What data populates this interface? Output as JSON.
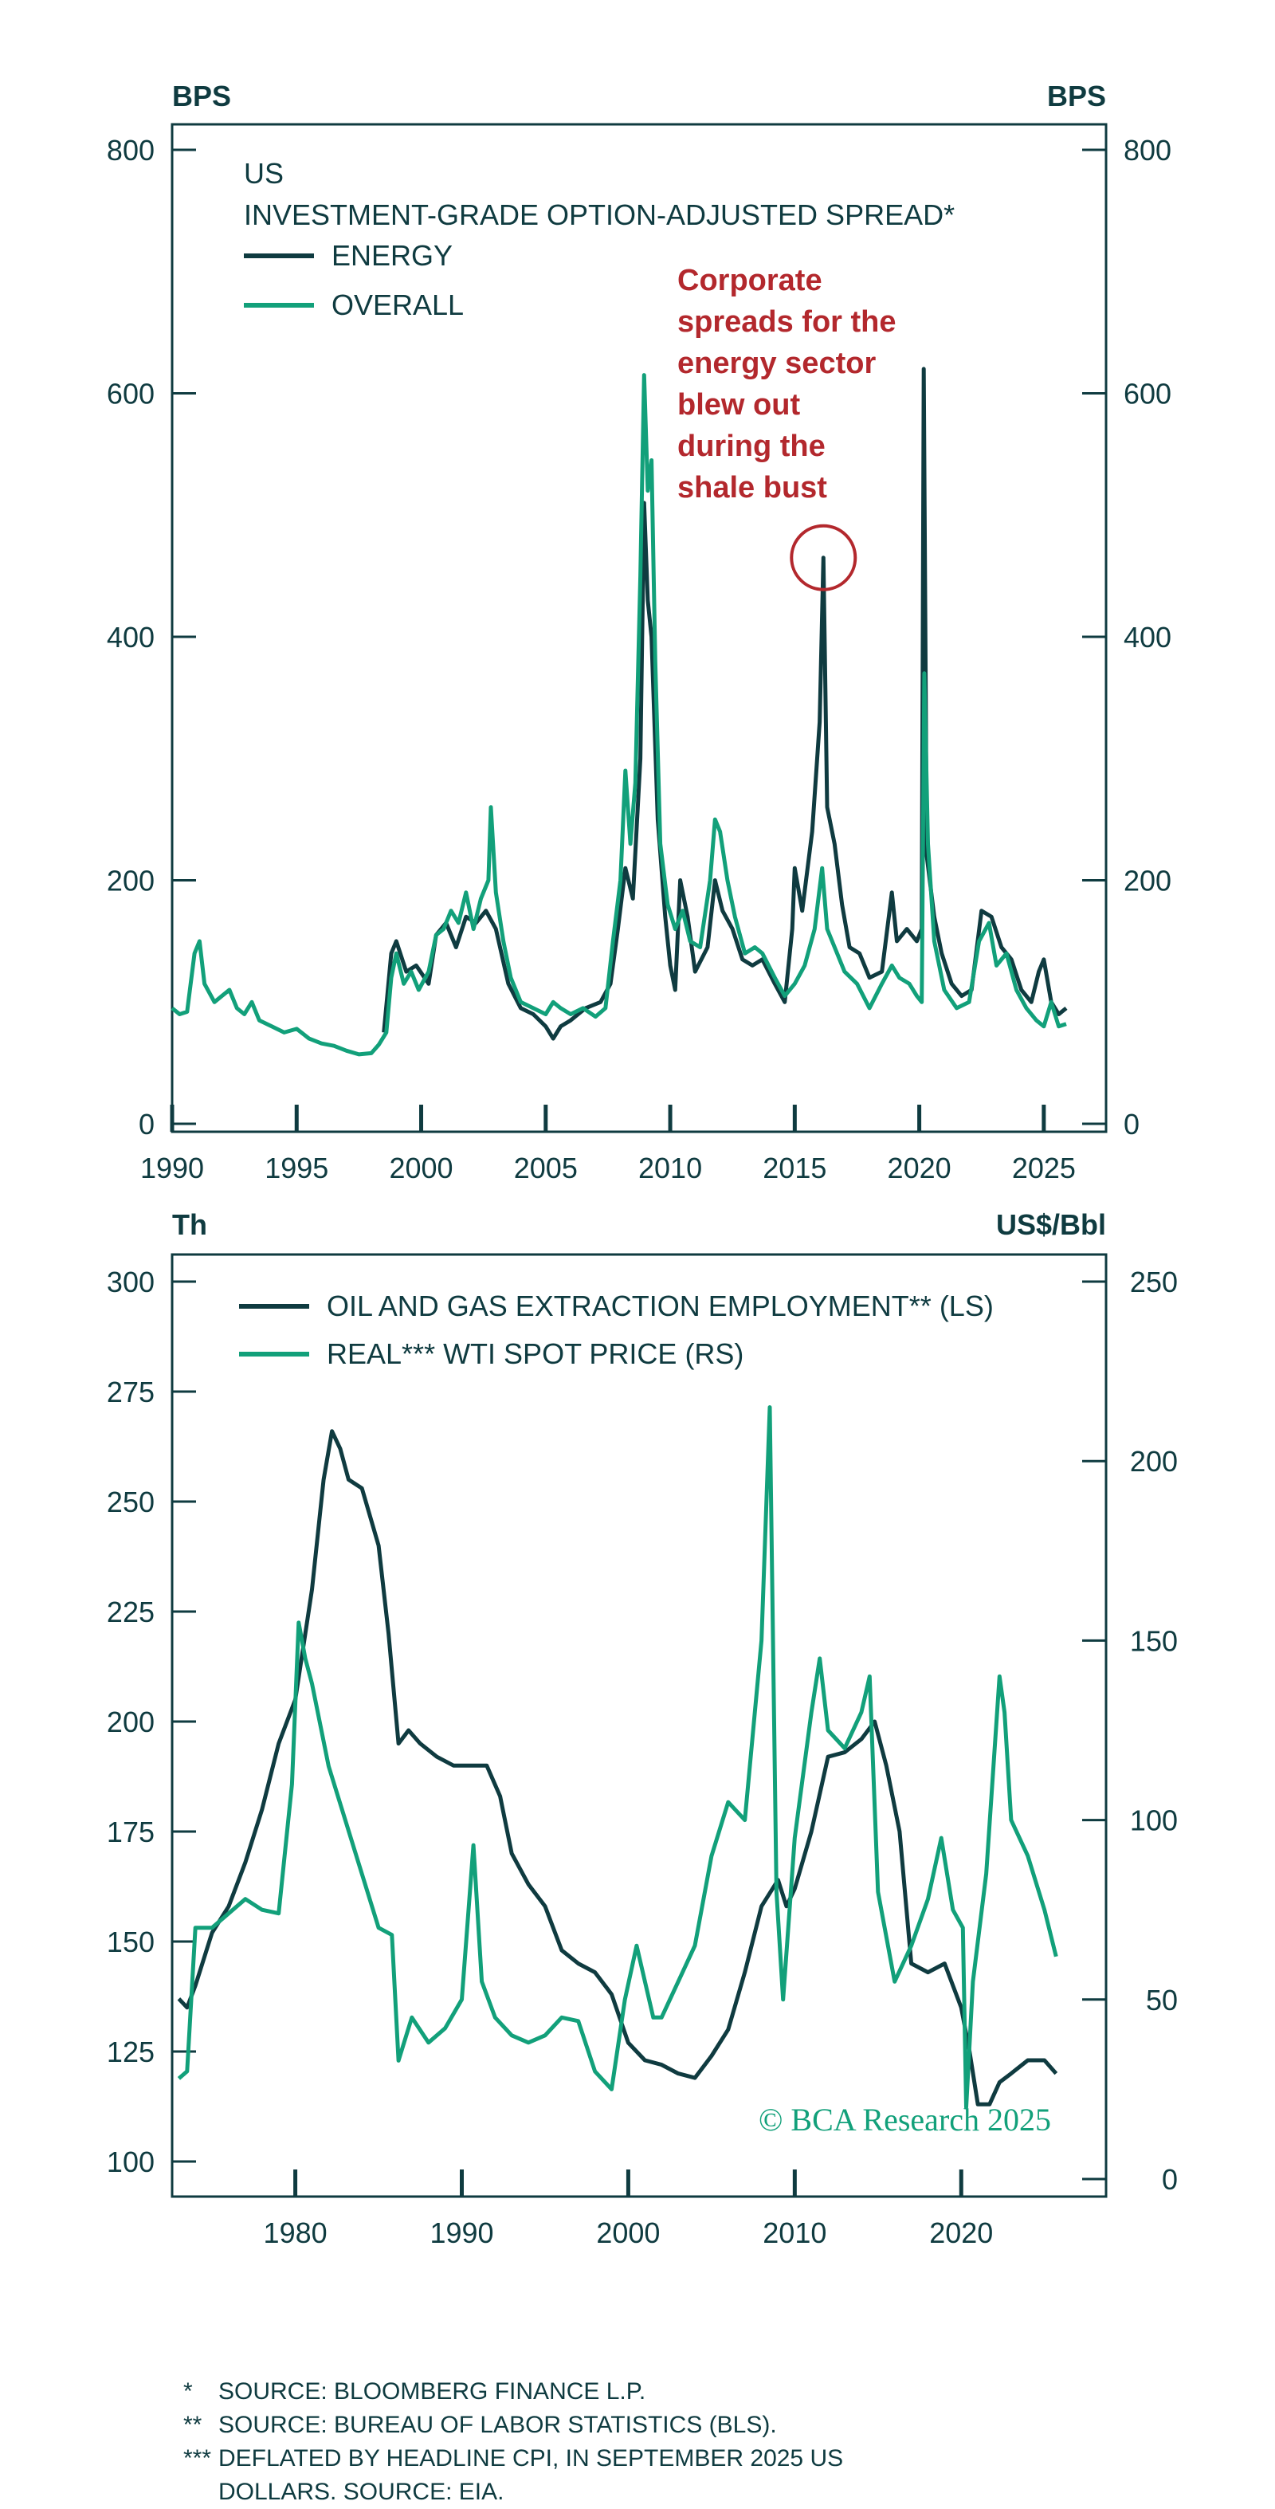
{
  "colors": {
    "energy": "#0f3b40",
    "overall": "#12a07a",
    "annotation": "#b3282d",
    "axis": "#0f3b40"
  },
  "top": {
    "left_unit": "BPS",
    "right_unit": "BPS",
    "title_line1": "US",
    "title_line2": "INVESTMENT-GRADE OPTION-ADJUSTED SPREAD*",
    "legend": [
      "ENERGY",
      "OVERALL"
    ],
    "annotation": [
      "Corporate",
      "spreads for the",
      "energy sector",
      "blew out",
      "during the",
      "shale bust"
    ]
  },
  "bottom": {
    "left_unit": "Th",
    "right_unit": "US$/Bbl",
    "legend": [
      "OIL AND GAS EXTRACTION EMPLOYMENT** (LS)",
      "REAL*** WTI SPOT PRICE (RS)"
    ],
    "watermark": "© BCA Research 2025"
  },
  "footnotes": [
    {
      "mark": "*",
      "text": "SOURCE: BLOOMBERG FINANCE L.P."
    },
    {
      "mark": "**",
      "text": "SOURCE: BUREAU OF LABOR STATISTICS (BLS)."
    },
    {
      "mark": "***",
      "text": "DEFLATED BY HEADLINE CPI, IN SEPTEMBER 2025 US"
    },
    {
      "mark": "",
      "text": "DOLLARS. SOURCE: EIA."
    }
  ],
  "chart_data": [
    {
      "type": "line",
      "title": "US INVESTMENT-GRADE OPTION-ADJUSTED SPREAD*",
      "ylabel": "BPS",
      "ylabel_right": "BPS",
      "ylim": [
        0,
        800
      ],
      "yticks": [
        0,
        200,
        400,
        600,
        800
      ],
      "xlim": [
        1990,
        2027.5
      ],
      "xticks": [
        1990,
        1995,
        2000,
        2005,
        2010,
        2015,
        2020,
        2025
      ],
      "annotation": {
        "text": "Corporate spreads for the energy sector blew out during the shale bust",
        "x": 2016.15,
        "y": 465
      },
      "series": [
        {
          "name": "ENERGY",
          "color": "#0f3b40",
          "x": [
            1998.5,
            1998.8,
            1999.0,
            1999.4,
            1999.8,
            2000.3,
            2000.6,
            2001.0,
            2001.4,
            2001.8,
            2002.2,
            2002.6,
            2003.0,
            2003.5,
            2004.0,
            2004.5,
            2005.0,
            2005.3,
            2005.6,
            2006.0,
            2006.6,
            2007.2,
            2007.6,
            2007.9,
            2008.2,
            2008.5,
            2008.8,
            2008.95,
            2009.1,
            2009.25,
            2009.5,
            2009.8,
            2010.0,
            2010.2,
            2010.4,
            2010.7,
            2011.0,
            2011.5,
            2011.8,
            2012.1,
            2012.5,
            2012.9,
            2013.3,
            2013.7,
            2014.2,
            2014.6,
            2014.9,
            2015.0,
            2015.3,
            2015.7,
            2016.0,
            2016.15,
            2016.3,
            2016.6,
            2016.9,
            2017.2,
            2017.6,
            2018.0,
            2018.5,
            2018.9,
            2019.1,
            2019.5,
            2019.9,
            2020.1,
            2020.18,
            2020.3,
            2020.6,
            2020.9,
            2021.3,
            2021.7,
            2022.1,
            2022.5,
            2022.9,
            2023.3,
            2023.7,
            2024.1,
            2024.5,
            2024.8,
            2025.0,
            2025.3,
            2025.6,
            2025.9
          ],
          "y": [
            75,
            140,
            150,
            125,
            130,
            115,
            155,
            165,
            145,
            170,
            165,
            175,
            160,
            115,
            95,
            90,
            80,
            70,
            80,
            85,
            95,
            100,
            115,
            160,
            210,
            185,
            300,
            510,
            430,
            400,
            250,
            170,
            130,
            110,
            200,
            170,
            125,
            145,
            200,
            175,
            160,
            135,
            130,
            135,
            115,
            100,
            160,
            210,
            175,
            240,
            330,
            465,
            260,
            230,
            180,
            145,
            140,
            120,
            125,
            190,
            150,
            160,
            150,
            160,
            620,
            220,
            170,
            140,
            115,
            105,
            110,
            175,
            170,
            145,
            135,
            110,
            100,
            125,
            135,
            100,
            90,
            95
          ]
        },
        {
          "name": "OVERALL",
          "color": "#12a07a",
          "x": [
            1990.0,
            1990.3,
            1990.6,
            1990.9,
            1991.1,
            1991.3,
            1991.7,
            1992.0,
            1992.3,
            1992.6,
            1992.9,
            1993.2,
            1993.5,
            1994.0,
            1994.5,
            1995.0,
            1995.5,
            1996.0,
            1996.5,
            1997.0,
            1997.5,
            1998.0,
            1998.3,
            1998.6,
            1998.8,
            1999.0,
            1999.3,
            1999.6,
            1999.9,
            2000.3,
            2000.6,
            2000.9,
            2001.2,
            2001.5,
            2001.8,
            2002.1,
            2002.4,
            2002.7,
            2002.8,
            2003.0,
            2003.3,
            2003.6,
            2004.0,
            2004.5,
            2005.0,
            2005.3,
            2005.6,
            2006.0,
            2006.5,
            2007.0,
            2007.4,
            2007.7,
            2008.0,
            2008.2,
            2008.4,
            2008.6,
            2008.8,
            2008.95,
            2009.1,
            2009.25,
            2009.4,
            2009.6,
            2009.9,
            2010.2,
            2010.5,
            2010.8,
            2011.2,
            2011.6,
            2011.8,
            2012.0,
            2012.3,
            2012.6,
            2013.0,
            2013.4,
            2013.7,
            2014.2,
            2014.6,
            2015.0,
            2015.4,
            2015.8,
            2016.1,
            2016.3,
            2016.7,
            2017.0,
            2017.5,
            2018.0,
            2018.5,
            2018.9,
            2019.2,
            2019.6,
            2019.9,
            2020.1,
            2020.2,
            2020.35,
            2020.6,
            2021.0,
            2021.5,
            2022.0,
            2022.4,
            2022.8,
            2023.1,
            2023.5,
            2023.9,
            2024.3,
            2024.7,
            2025.0,
            2025.3,
            2025.6,
            2025.9
          ],
          "y": [
            95,
            90,
            92,
            140,
            150,
            115,
            100,
            105,
            110,
            95,
            90,
            100,
            85,
            80,
            75,
            78,
            70,
            66,
            64,
            60,
            57,
            58,
            65,
            75,
            120,
            140,
            115,
            125,
            110,
            125,
            155,
            160,
            175,
            165,
            190,
            160,
            185,
            200,
            260,
            190,
            150,
            120,
            100,
            95,
            90,
            100,
            95,
            90,
            95,
            88,
            95,
            150,
            200,
            290,
            230,
            280,
            450,
            615,
            520,
            545,
            380,
            230,
            180,
            160,
            175,
            150,
            145,
            200,
            250,
            240,
            200,
            170,
            140,
            145,
            140,
            120,
            105,
            115,
            130,
            160,
            210,
            160,
            140,
            125,
            115,
            95,
            115,
            130,
            120,
            115,
            105,
            100,
            370,
            230,
            150,
            110,
            95,
            100,
            150,
            165,
            130,
            140,
            110,
            95,
            85,
            80,
            100,
            80,
            82
          ]
        }
      ]
    },
    {
      "type": "line",
      "ylabel": "Th",
      "ylabel_right": "US$/Bbl",
      "ylim": [
        95,
        305
      ],
      "yticks": [
        100,
        125,
        150,
        175,
        200,
        225,
        250,
        275,
        300
      ],
      "ylim_right": [
        0,
        250
      ],
      "yticks_right": [
        0,
        50,
        100,
        150,
        200,
        250
      ],
      "xlim": [
        1972.6,
        2028.7
      ],
      "xticks": [
        1980,
        1990,
        2000,
        2010,
        2020
      ],
      "series": [
        {
          "name": "OIL AND GAS EXTRACTION EMPLOYMENT** (LS)",
          "axis": "left",
          "color": "#0f3b40",
          "x": [
            1973.0,
            1973.5,
            1974,
            1975,
            1976,
            1977,
            1978,
            1979,
            1980,
            1981,
            1981.7,
            1982.2,
            1982.7,
            1983.2,
            1984,
            1985,
            1985.6,
            1986.2,
            1986.8,
            1987.5,
            1988.5,
            1989.5,
            1990.5,
            1991.5,
            1992.3,
            1993,
            1994,
            1995,
            1996,
            1997,
            1998,
            1999,
            2000,
            2001,
            2002,
            2003,
            2004,
            2005,
            2006,
            2007,
            2008,
            2009,
            2009.5,
            2010,
            2011,
            2012,
            2013,
            2014,
            2014.8,
            2015.5,
            2016.3,
            2017,
            2018,
            2019,
            2020,
            2020.5,
            2021,
            2021.7,
            2022.3,
            2023,
            2024,
            2025,
            2025.7
          ],
          "y": [
            137,
            135,
            140,
            152,
            158,
            168,
            180,
            195,
            205,
            230,
            255,
            266,
            262,
            255,
            253,
            240,
            220,
            195,
            198,
            195,
            192,
            190,
            190,
            190,
            183,
            170,
            163,
            158,
            148,
            145,
            143,
            138,
            127,
            123,
            122,
            120,
            119,
            124,
            130,
            143,
            158,
            164,
            158,
            162,
            175,
            192,
            193,
            196,
            200,
            190,
            175,
            145,
            143,
            145,
            135,
            125,
            113,
            113,
            118,
            120,
            123,
            123,
            120
          ]
        },
        {
          "name": "REAL*** WTI SPOT PRICE (RS)",
          "axis": "right",
          "color": "#12a07a",
          "x": [
            1973.0,
            1973.5,
            1974.0,
            1975,
            1976,
            1977,
            1978,
            1979,
            1979.8,
            1980.2,
            1980.6,
            1981,
            1982,
            1983,
            1984,
            1985,
            1985.8,
            1986.2,
            1987,
            1988,
            1989,
            1990,
            1990.7,
            1991.2,
            1992,
            1993,
            1994,
            1995,
            1996,
            1997,
            1998,
            1999,
            1999.8,
            2000.5,
            2001.5,
            2002,
            2003,
            2004,
            2005,
            2006,
            2007,
            2008,
            2008.5,
            2008.9,
            2009.3,
            2010,
            2011,
            2011.5,
            2012,
            2013,
            2014,
            2014.5,
            2015,
            2016,
            2017,
            2018,
            2018.8,
            2019.5,
            2020.1,
            2020.3,
            2020.7,
            2021.5,
            2022.3,
            2022.6,
            2023,
            2024,
            2025,
            2025.7
          ],
          "y": [
            28,
            30,
            70,
            70,
            74,
            78,
            75,
            74,
            110,
            155,
            145,
            138,
            115,
            100,
            85,
            70,
            68,
            33,
            45,
            38,
            42,
            50,
            93,
            55,
            45,
            40,
            38,
            40,
            45,
            44,
            30,
            25,
            50,
            65,
            45,
            45,
            55,
            65,
            90,
            105,
            100,
            150,
            215,
            80,
            50,
            95,
            130,
            145,
            125,
            120,
            130,
            140,
            80,
            55,
            65,
            78,
            95,
            75,
            70,
            20,
            55,
            85,
            140,
            130,
            100,
            90,
            75,
            62
          ]
        }
      ]
    }
  ]
}
